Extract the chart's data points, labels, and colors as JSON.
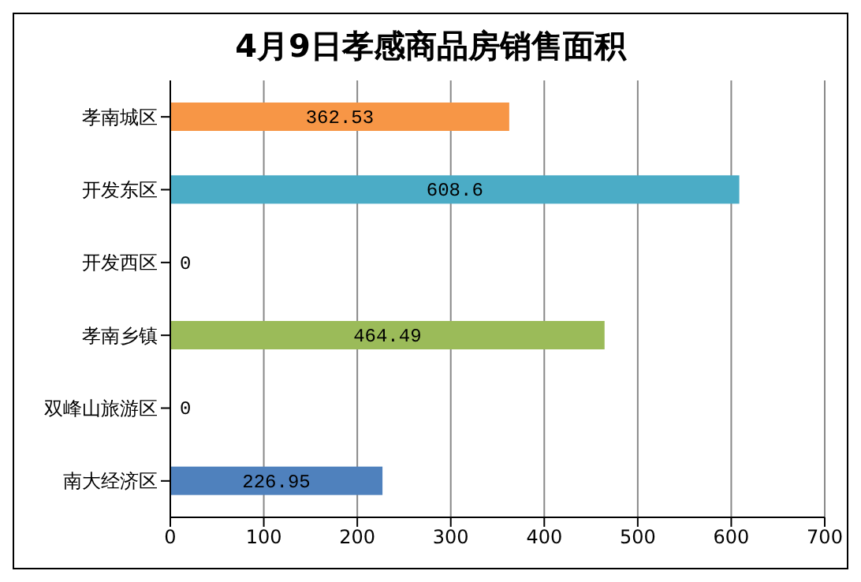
{
  "chart_data": {
    "type": "bar",
    "orientation": "horizontal",
    "title": "4月9日孝感商品房销售面积",
    "categories": [
      "孝南城区",
      "开发东区",
      "开发西区",
      "孝南乡镇",
      "双峰山旅游区",
      "南大经济区"
    ],
    "values": [
      362.53,
      608.6,
      0,
      464.49,
      0,
      226.95
    ],
    "colors": [
      "#f79646",
      "#4bacc6",
      null,
      "#9bbb59",
      null,
      "#4f81bd"
    ],
    "xlim": [
      0,
      700
    ],
    "xticks": [
      0,
      100,
      200,
      300,
      400,
      500,
      600,
      700
    ],
    "grid": "x",
    "data_labels": true
  }
}
